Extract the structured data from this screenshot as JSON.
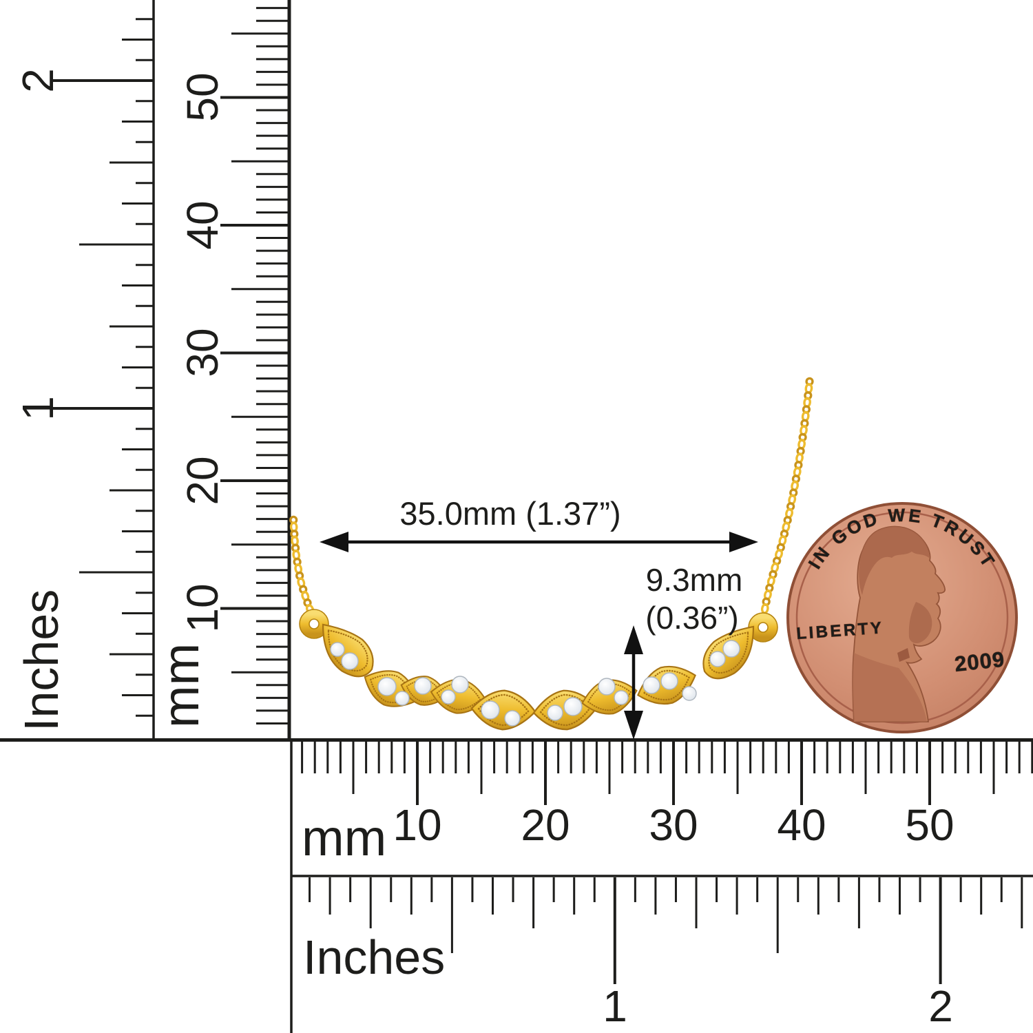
{
  "dimension_labels": {
    "width": "35.0mm (1.37”)",
    "height_line1": "9.3mm",
    "height_line2": "(0.36”)"
  },
  "rulers": {
    "left_inches": {
      "unit": "Inches",
      "numbers": [
        "1",
        "2"
      ]
    },
    "left_mm": {
      "unit": "mm",
      "numbers": [
        "10",
        "20",
        "30",
        "40",
        "50"
      ]
    },
    "bottom_mm": {
      "unit": "mm",
      "numbers": [
        "10",
        "20",
        "30",
        "40",
        "50"
      ]
    },
    "bottom_inches": {
      "unit": "Inches",
      "numbers": [
        "1",
        "2"
      ]
    }
  },
  "penny": {
    "motto": "IN GOD WE TRUST",
    "liberty": "LIBERTY",
    "year": "2009"
  },
  "colors": {
    "ink": "#1d1d1b",
    "gold": "#EEBC2E",
    "gold_light": "#F9DD71",
    "gold_dark": "#C8931C",
    "gold_deep": "#A87414",
    "diamond_hi": "#FFFFFF",
    "diamond": "#D9E0E8",
    "copper": "#D18E72",
    "copper_light": "#E4AC91",
    "copper_dark": "#8F4F36"
  }
}
